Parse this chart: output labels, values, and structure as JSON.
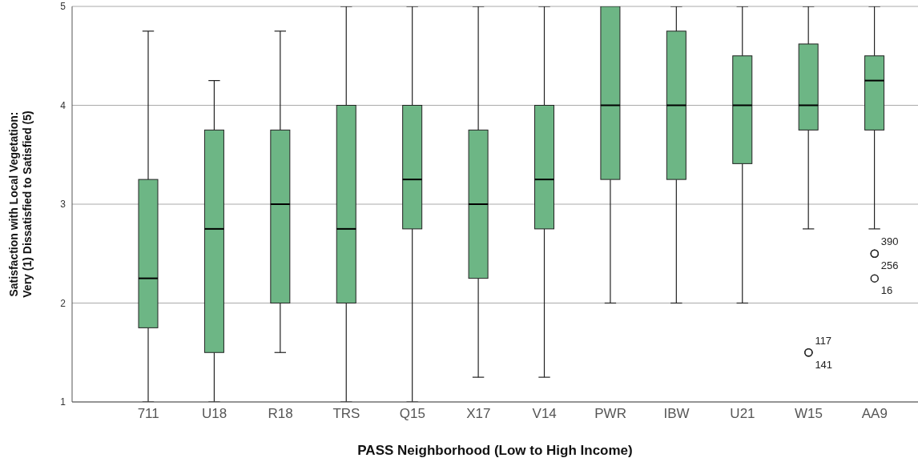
{
  "chart_data": {
    "type": "box",
    "xlabel": "PASS Neighborhood (Low to High Income)",
    "ylabel": "Satisfaction with Local Vegetation:\nVery (1) Dissatisfied to Satisfied (5)",
    "categories": [
      "711",
      "U18",
      "R18",
      "TRS",
      "Q15",
      "X17",
      "V14",
      "PWR",
      "IBW",
      "U21",
      "W15",
      "AA9"
    ],
    "color": "#6db685",
    "boxes": [
      {
        "low": 1,
        "q1": 1.75,
        "median": 2.25,
        "q3": 3.25,
        "high": 4.75
      },
      {
        "low": 1,
        "q1": 1.5,
        "median": 2.75,
        "q3": 3.75,
        "high": 4.25
      },
      {
        "low": 1.5,
        "q1": 2,
        "median": 3,
        "q3": 3.75,
        "high": 4.75
      },
      {
        "low": 1,
        "q1": 2,
        "median": 2.75,
        "q3": 4,
        "high": 5
      },
      {
        "low": 1,
        "q1": 2.75,
        "median": 3.25,
        "q3": 4,
        "high": 5
      },
      {
        "low": 1.25,
        "q1": 2.25,
        "median": 3,
        "q3": 3.75,
        "high": 5
      },
      {
        "low": 1.25,
        "q1": 2.75,
        "median": 3.25,
        "q3": 4,
        "high": 5
      },
      {
        "low": 2,
        "q1": 3.25,
        "median": 4,
        "q3": 5,
        "high": 5
      },
      {
        "low": 2,
        "q1": 3.25,
        "median": 4,
        "q3": 4.75,
        "high": 5
      },
      {
        "low": 2,
        "q1": 3.41,
        "median": 4,
        "q3": 4.5,
        "high": 5
      },
      {
        "low": 2.75,
        "q1": 3.75,
        "median": 4,
        "q3": 4.62,
        "high": 5,
        "outliers": [
          1.5,
          1.5
        ]
      },
      {
        "low": 2.75,
        "q1": 3.75,
        "median": 4.25,
        "q3": 4.5,
        "high": 5,
        "outliers": [
          2.5,
          2.5,
          2.25
        ]
      }
    ],
    "ylim": [
      1,
      5
    ],
    "yticks": [
      1,
      2,
      3,
      4,
      5
    ],
    "grid": "y",
    "annotations": [
      "117",
      "141",
      "390",
      "256",
      "16"
    ]
  }
}
